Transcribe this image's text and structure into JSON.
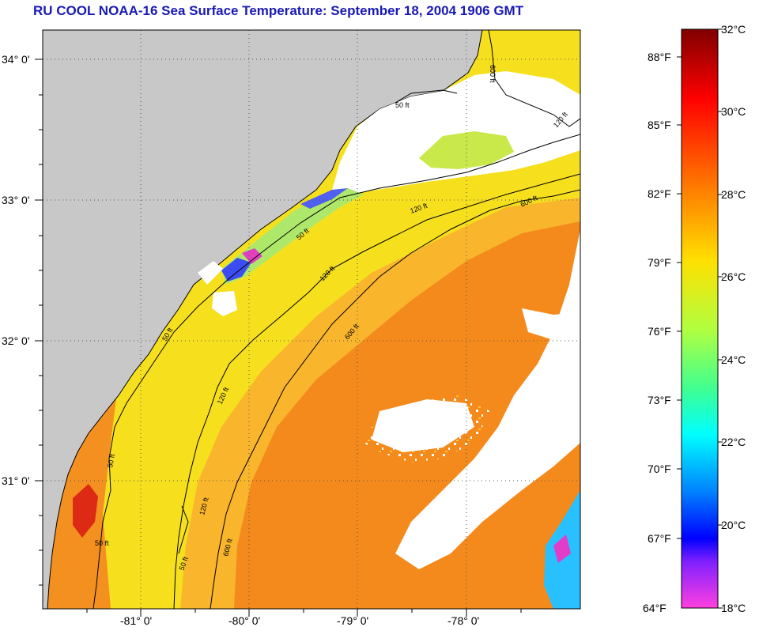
{
  "title": "RU COOL  NOAA-16  Sea Surface Temperature:  September 18, 2004 1906 GMT",
  "map": {
    "lat_labels": [
      "34° 0'",
      "33° 0'",
      "32° 0'",
      "31° 0'"
    ],
    "lon_labels": [
      "-81° 0'",
      "-80° 0'",
      "-79° 0'",
      "-78° 0'"
    ],
    "contour_labels": [
      "50 ft",
      "50 ft",
      "50 ft",
      "50 ft",
      "50 ft",
      "120 ft",
      "120 ft",
      "120 ft",
      "120 ft",
      "600 ft",
      "600 ft",
      "600 ft",
      "600 ft",
      "50 ft",
      "120 ft"
    ],
    "colors": {
      "land": "#c8c8c8",
      "cloud": "#ffffff",
      "warm_orange": "#f58a1c",
      "light_orange": "#fbb02a",
      "yellow": "#f4e31c",
      "hot_red": "#dc2a14"
    }
  },
  "colorbar": {
    "fahrenheit_labels": [
      "88°F",
      "85°F",
      "82°F",
      "79°F",
      "76°F",
      "73°F",
      "70°F",
      "67°F",
      "64°F"
    ],
    "celsius_labels": [
      "32°C",
      "30°C",
      "28°C",
      "26°C",
      "24°C",
      "22°C",
      "20°C",
      "18°C"
    ],
    "colors": [
      "#800000",
      "#ff0000",
      "#ff8000",
      "#ffff00",
      "#80ff80",
      "#00ffff",
      "#0080ff",
      "#0000ff",
      "#ff40c0"
    ]
  }
}
